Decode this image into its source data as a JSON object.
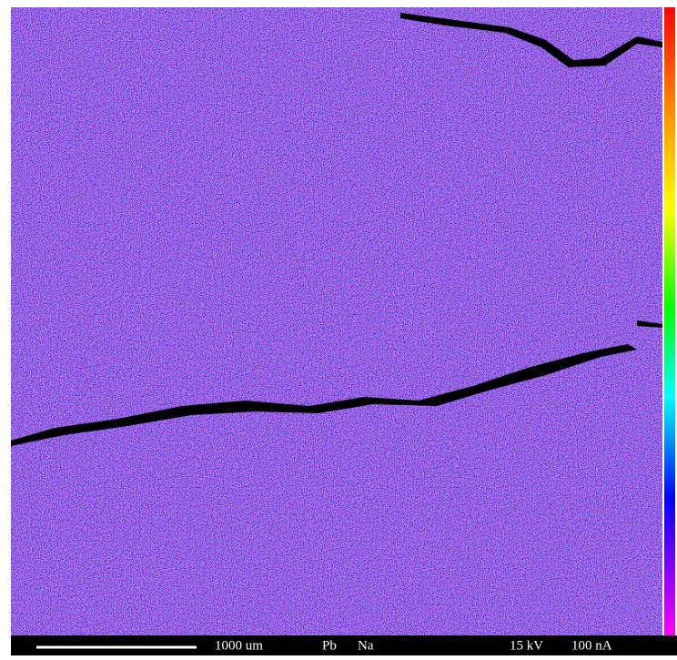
{
  "footer": {
    "scale": "1000 um",
    "elements": [
      "Pb",
      "Na"
    ],
    "voltage": "15 kV",
    "current": "100 nA"
  }
}
